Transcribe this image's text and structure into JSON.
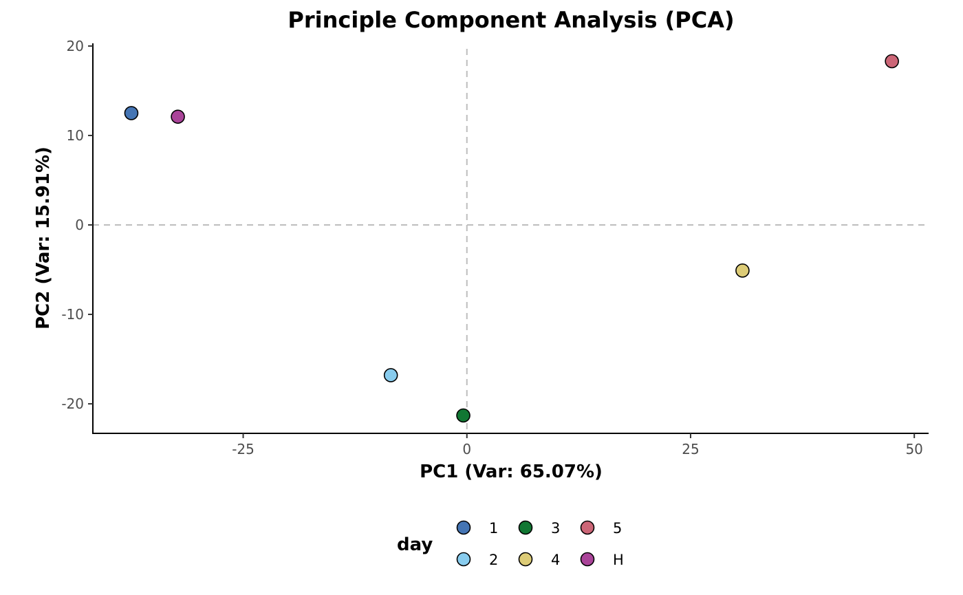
{
  "chart_data": {
    "type": "scatter",
    "title": "Principle Component Analysis (PCA)",
    "xlabel": "PC1 (Var: 65.07%)",
    "ylabel": "PC2 (Var: 15.91%)",
    "xlim": [
      -41.8,
      51.6
    ],
    "ylim": [
      -23.3,
      20.3
    ],
    "xticks": [
      -25,
      0,
      25,
      50
    ],
    "yticks": [
      20,
      10,
      0,
      -10,
      -20
    ],
    "xtick_labels": [
      "-25",
      "0",
      "25",
      "50"
    ],
    "ytick_labels": [
      "20",
      "10",
      "0",
      "-10",
      "-20"
    ],
    "reference_lines": {
      "x": 0,
      "y": 0,
      "style": "dashed",
      "color": "#bdbdbd"
    },
    "grid": false,
    "points": [
      {
        "group": "1",
        "x": -37.5,
        "y": 12.5
      },
      {
        "group": "H",
        "x": -32.3,
        "y": 12.1
      },
      {
        "group": "2",
        "x": -8.5,
        "y": -16.8
      },
      {
        "group": "3",
        "x": -0.4,
        "y": -21.3
      },
      {
        "group": "4",
        "x": 30.8,
        "y": -5.1
      },
      {
        "group": "5",
        "x": 47.5,
        "y": 18.3
      }
    ],
    "legend": {
      "title": "day",
      "position": "bottom",
      "entries": [
        {
          "label": "1",
          "color": "#4575b4"
        },
        {
          "label": "2",
          "color": "#88ccee"
        },
        {
          "label": "3",
          "color": "#117733"
        },
        {
          "label": "4",
          "color": "#ddcc77"
        },
        {
          "label": "5",
          "color": "#cc6677"
        },
        {
          "label": "H",
          "color": "#aa4499"
        }
      ]
    }
  }
}
